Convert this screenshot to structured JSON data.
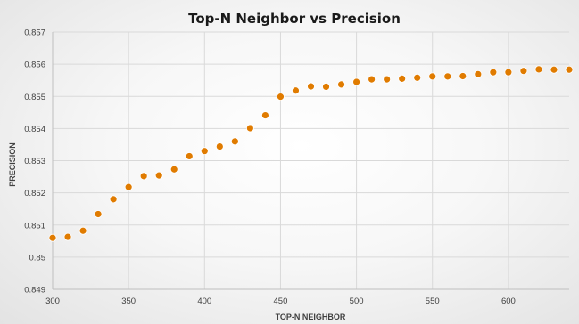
{
  "chart_data": {
    "type": "scatter",
    "title": "Top-N Neighbor vs Precision",
    "xlabel": "TOP-N NEIGHBOR",
    "ylabel": "PRECISION",
    "xlim": [
      300,
      640
    ],
    "ylim": [
      0.849,
      0.857
    ],
    "x_ticks": [
      "300",
      "350",
      "400",
      "450",
      "500",
      "550",
      "600"
    ],
    "y_ticks": [
      "0.849",
      "0.85",
      "0.851",
      "0.852",
      "0.853",
      "0.854",
      "0.855",
      "0.856",
      "0.857"
    ],
    "grid": true,
    "marker_color": "#e07b00",
    "series": [
      {
        "x": [
          300,
          310,
          320,
          330,
          340,
          350,
          360,
          370,
          380,
          390,
          400,
          410,
          420,
          430,
          440,
          450,
          460,
          470,
          480,
          490,
          500,
          510,
          520,
          530,
          540,
          550,
          560,
          570,
          580,
          590,
          600,
          610,
          620,
          630,
          640
        ],
        "y": [
          0.8506,
          0.85063,
          0.85082,
          0.85134,
          0.8518,
          0.85218,
          0.85252,
          0.85254,
          0.85273,
          0.85314,
          0.8533,
          0.85344,
          0.8536,
          0.85401,
          0.85441,
          0.85499,
          0.85518,
          0.85531,
          0.8553,
          0.85537,
          0.85545,
          0.85553,
          0.85553,
          0.85555,
          0.85558,
          0.85562,
          0.85562,
          0.85563,
          0.85569,
          0.85575,
          0.85575,
          0.85579,
          0.85584,
          0.85583,
          0.85583
        ]
      }
    ]
  }
}
